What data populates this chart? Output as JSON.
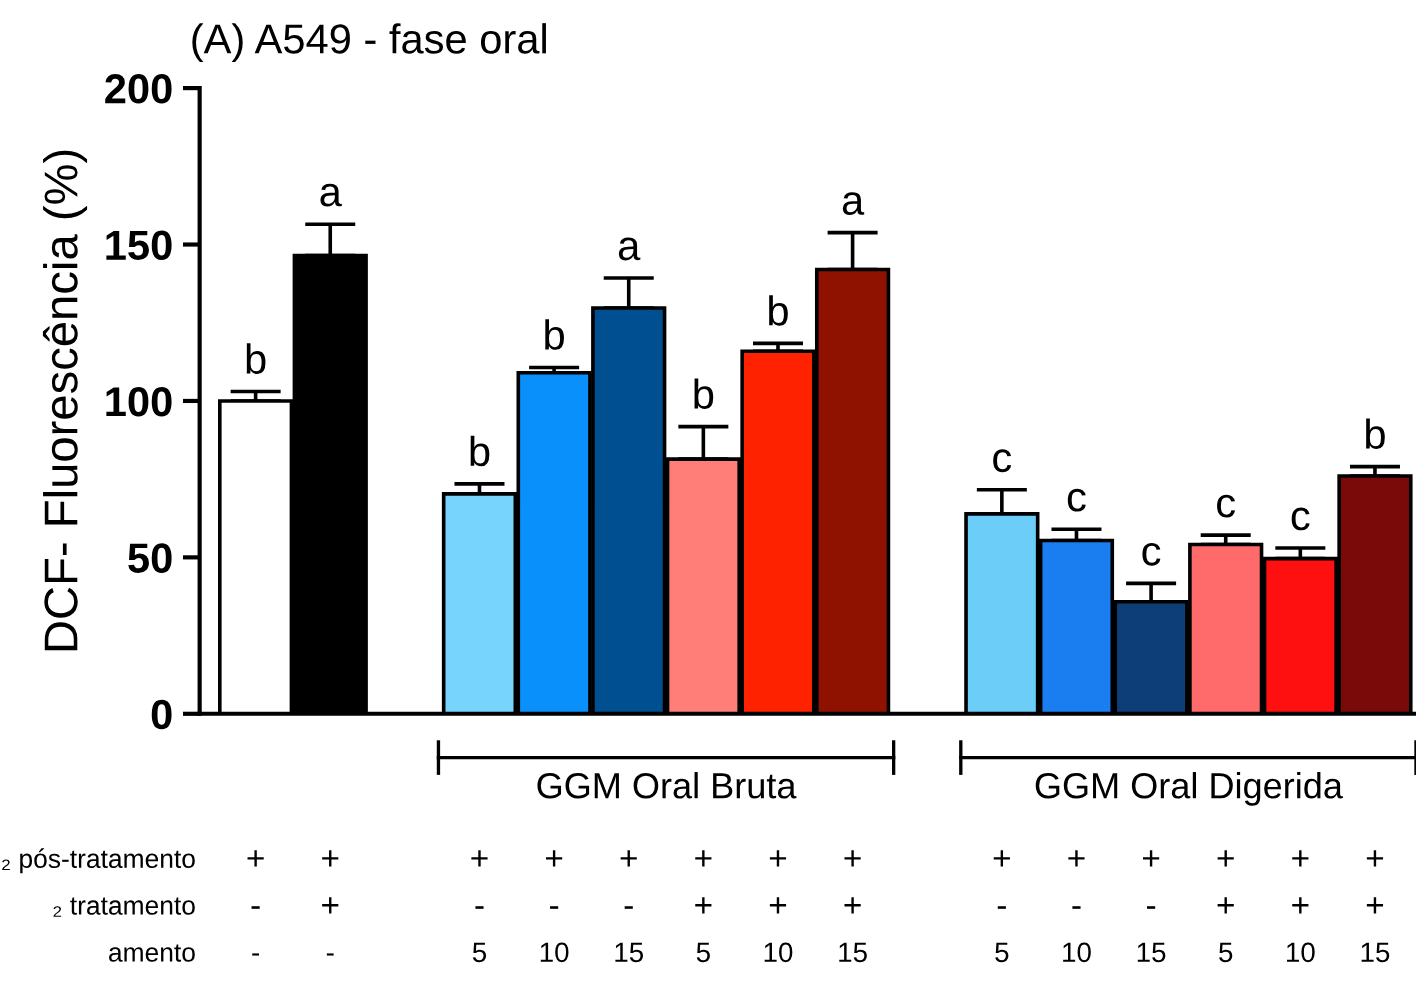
{
  "chart_data": {
    "type": "bar",
    "title": "(A) A549 - fase oral",
    "ylabel": "DCF- Fluorescência (%)",
    "categories": [
      null,
      null,
      null,
      null,
      null,
      null,
      null,
      null,
      null,
      null,
      null,
      null,
      null,
      null,
      null,
      null
    ],
    "values": [
      100,
      146.5,
      null,
      70.3,
      109,
      129.7,
      81.4,
      115.9,
      142,
      null,
      63.9,
      55.4,
      35.8,
      54.1,
      49.6,
      76
    ],
    "errors": [
      [
        100,
        103
      ],
      [
        146.5,
        156.5
      ],
      null,
      [
        70.3,
        73.5
      ],
      [
        109,
        110.7
      ],
      [
        129.7,
        139.3
      ],
      [
        81.4,
        91.8
      ],
      [
        115.9,
        118.4
      ],
      [
        142,
        153.8
      ],
      null,
      [
        63.9,
        71.6
      ],
      [
        55.4,
        59
      ],
      [
        35.8,
        41.7
      ],
      [
        54.1,
        57.1
      ],
      [
        49.6,
        53
      ],
      [
        76,
        79
      ]
    ],
    "value_labels": [
      "b",
      "a",
      null,
      "b",
      "b",
      "a",
      "b",
      "b",
      "a",
      null,
      "c",
      "c",
      "c",
      "c",
      "c",
      "b"
    ],
    "colors": [
      "#ffffff",
      "#000000",
      "#ffffff",
      "#77d4fd",
      "#0a90fb",
      "#004f90",
      "#ff7f78",
      "#ff2200",
      "#8f1200",
      "#ffffff",
      "#6ccdf8",
      "#1a7ef0",
      "#0d3e78",
      "#ff6a6a",
      "#ff1010",
      "#7a0a0a"
    ],
    "ylim": [
      0,
      200
    ],
    "yticks": [
      0,
      50,
      100,
      150,
      200
    ],
    "grid": false,
    "legend": false,
    "annotations": [
      "GGM Oral Bruta",
      "GGM Oral Digerida",
      "₂ pós-tratamento",
      "+",
      "+",
      "+",
      "+",
      "+",
      "+",
      "+",
      "+",
      "+",
      "+",
      "+",
      "+",
      "+",
      "+",
      "₂ tratamento",
      "-",
      "+",
      "-",
      "-",
      "-",
      "+",
      "+",
      "+",
      "-",
      "-",
      "-",
      "+",
      "+",
      "+",
      "amento",
      "-",
      "-",
      "5",
      "10",
      "15",
      "5",
      "10",
      "15",
      "5",
      "10",
      "15",
      "5",
      "10",
      "15"
    ]
  }
}
